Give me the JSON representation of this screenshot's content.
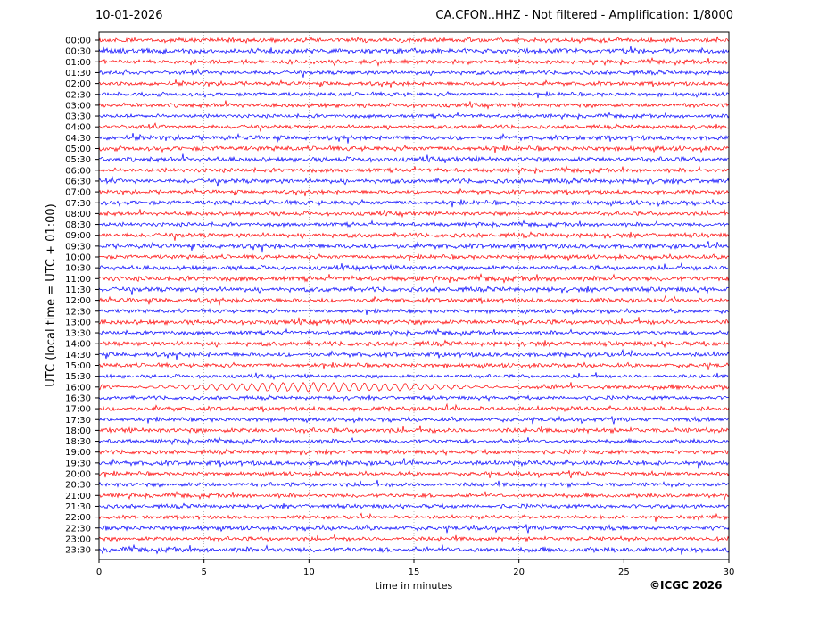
{
  "header": {
    "date": "10-01-2026",
    "station_info": "CA.CFON..HHZ - Not filtered - Amplification: 1/8000"
  },
  "copyright": "©ICGC 2026",
  "colors": {
    "odd_trace": "#ff0000",
    "even_trace": "#0000ff",
    "axes": "#000000",
    "grid": "#888888"
  },
  "chart_data": {
    "type": "line",
    "title": "CA.CFON..HHZ - Not filtered - Amplification: 1/8000",
    "xlabel": "time in minutes",
    "ylabel": "UTC (local time = UTC + 01:00)",
    "xlim": [
      0,
      30
    ],
    "x_ticks": [
      "0",
      "5",
      "10",
      "15",
      "20",
      "25",
      "30"
    ],
    "grid": "vertical dotted lines at x ticks",
    "trace_colors_alternate": [
      "red",
      "blue"
    ],
    "rows": [
      "00:00",
      "00:30",
      "01:00",
      "01:30",
      "02:00",
      "02:30",
      "03:00",
      "03:30",
      "04:00",
      "04:30",
      "05:00",
      "05:30",
      "06:00",
      "06:30",
      "07:00",
      "07:30",
      "08:00",
      "08:30",
      "09:00",
      "09:30",
      "10:00",
      "10:30",
      "11:00",
      "11:30",
      "12:00",
      "12:30",
      "13:00",
      "13:30",
      "14:00",
      "14:30",
      "15:00",
      "15:30",
      "16:00",
      "16:30",
      "17:00",
      "17:30",
      "18:00",
      "18:30",
      "19:00",
      "19:30",
      "20:00",
      "20:30",
      "21:00",
      "21:30",
      "22:00",
      "22:30",
      "23:00",
      "23:30"
    ],
    "notable_events": [
      {
        "row": "16:00",
        "x_range": [
          1,
          20
        ],
        "description": "low-frequency oscillation"
      }
    ]
  }
}
